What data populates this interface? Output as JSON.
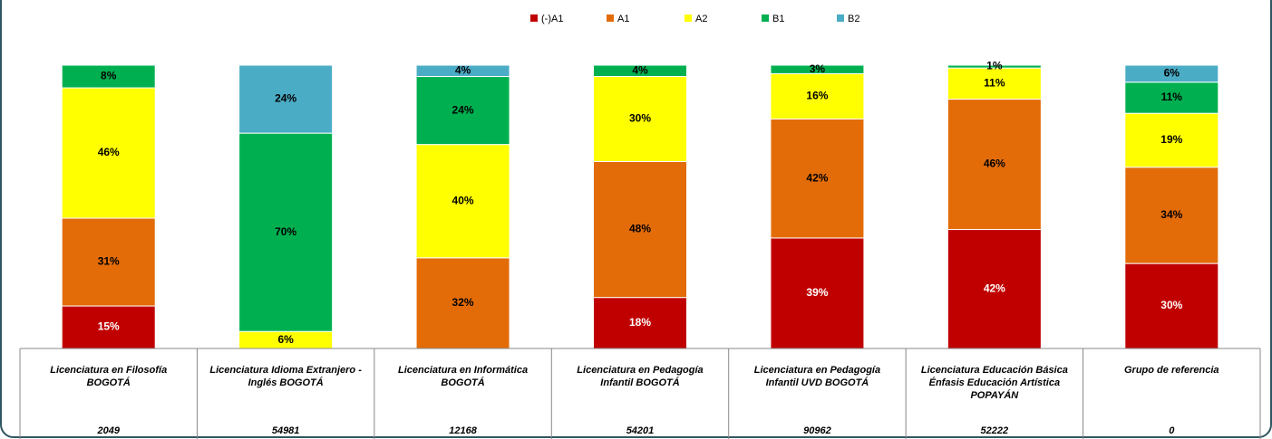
{
  "chart_data": {
    "type": "stacked_bar",
    "categories": [
      "Licenciatura en Filosofía BOGOTÁ",
      "Licenciatura Idioma Extranjero - Inglés BOGOTÁ",
      "Licenciatura en Informática BOGOTÁ",
      "Licenciatura en  Pedagogía Infantil BOGOTÁ",
      "Licenciatura  en Pedagogía Infantil UVD BOGOTÁ",
      "Licenciatura Educación Básica Énfasis Educación Artística POPAYÁN",
      "Grupo de referencia"
    ],
    "n": [
      2049,
      54981,
      12168,
      54201,
      90962,
      52222,
      0
    ],
    "ylim": [
      0,
      100
    ],
    "series": [
      {
        "name": "(-)A1",
        "color": "#c00000",
        "values": [
          15,
          null,
          null,
          18,
          39,
          42,
          30
        ],
        "value_labels": [
          "15%",
          null,
          null,
          "18%",
          "39%",
          "42%",
          "30%"
        ]
      },
      {
        "name": "A1",
        "color": "#e36c09",
        "values": [
          31,
          null,
          32,
          48,
          42,
          46,
          34
        ],
        "value_labels": [
          "31%",
          null,
          "32%",
          "48%",
          "42%",
          "46%",
          "34%"
        ]
      },
      {
        "name": "A2",
        "color": "#ffff00",
        "values": [
          46,
          6,
          40,
          30,
          16,
          11,
          19
        ],
        "value_labels": [
          "46%",
          "6%",
          "40%",
          "30%",
          "16%",
          "11%",
          "19%"
        ]
      },
      {
        "name": "B1",
        "color": "#00b050",
        "values": [
          8,
          70,
          24,
          4,
          3,
          1,
          11
        ],
        "value_labels": [
          "8%",
          "70%",
          "24%",
          "4%",
          "3%",
          "1%",
          "11%"
        ]
      },
      {
        "name": "B2",
        "color": "#4bacc6",
        "values": [
          null,
          24,
          4,
          null,
          null,
          null,
          6
        ],
        "value_labels": [
          null,
          "24%",
          "4%",
          null,
          null,
          null,
          "6%"
        ]
      }
    ]
  }
}
